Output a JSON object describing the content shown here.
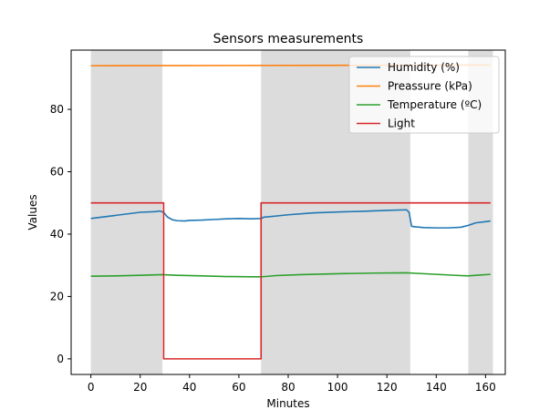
{
  "chart_data": {
    "type": "line",
    "title": "Sensors measurements",
    "xlabel": "Minutes",
    "ylabel": "Values",
    "xlim": [
      -8,
      168
    ],
    "ylim": [
      -5,
      99
    ],
    "xticks": [
      0,
      20,
      40,
      60,
      80,
      100,
      120,
      140,
      160
    ],
    "yticks": [
      0,
      20,
      40,
      60,
      80
    ],
    "grid": false,
    "legend_position": "top-right",
    "shaded_regions": [
      {
        "x0": 0,
        "x1": 29,
        "color": "#dcdcdc"
      },
      {
        "x0": 69,
        "x1": 129.5,
        "color": "#dcdcdc"
      },
      {
        "x0": 153,
        "x1": 163,
        "color": "#dcdcdc"
      }
    ],
    "series": [
      {
        "name": "Humidity (%)",
        "color": "#1f77b4",
        "points": [
          [
            0,
            45
          ],
          [
            10,
            46
          ],
          [
            20,
            47
          ],
          [
            26,
            47.2
          ],
          [
            28,
            47.4
          ],
          [
            29.5,
            47
          ],
          [
            31,
            45.5
          ],
          [
            33,
            44.6
          ],
          [
            35,
            44.3
          ],
          [
            38,
            44.2
          ],
          [
            40,
            44.4
          ],
          [
            45,
            44.5
          ],
          [
            50,
            44.7
          ],
          [
            55,
            44.9
          ],
          [
            60,
            45
          ],
          [
            65,
            44.9
          ],
          [
            69,
            45
          ],
          [
            70,
            45.4
          ],
          [
            75,
            45.8
          ],
          [
            80,
            46.2
          ],
          [
            90,
            46.8
          ],
          [
            100,
            47.1
          ],
          [
            110,
            47.3
          ],
          [
            120,
            47.6
          ],
          [
            128,
            47.8
          ],
          [
            129,
            47
          ],
          [
            130,
            42.5
          ],
          [
            132,
            42.3
          ],
          [
            135,
            42.1
          ],
          [
            140,
            42.0
          ],
          [
            145,
            42.0
          ],
          [
            150,
            42.2
          ],
          [
            153,
            42.8
          ],
          [
            156,
            43.6
          ],
          [
            160,
            44.0
          ],
          [
            162,
            44.2
          ]
        ]
      },
      {
        "name": "Preassure (kPa)",
        "color": "#ff7f0e",
        "points": [
          [
            0,
            94
          ],
          [
            162,
            94.2
          ]
        ]
      },
      {
        "name": "Temperature (ºC)",
        "color": "#2ca02c",
        "points": [
          [
            0,
            26.5
          ],
          [
            10,
            26.6
          ],
          [
            20,
            26.8
          ],
          [
            29,
            27.0
          ],
          [
            35,
            26.8
          ],
          [
            45,
            26.6
          ],
          [
            55,
            26.4
          ],
          [
            65,
            26.3
          ],
          [
            69,
            26.3
          ],
          [
            75,
            26.7
          ],
          [
            85,
            27.0
          ],
          [
            100,
            27.3
          ],
          [
            115,
            27.5
          ],
          [
            128,
            27.6
          ],
          [
            130,
            27.5
          ],
          [
            140,
            27.1
          ],
          [
            150,
            26.7
          ],
          [
            153,
            26.6
          ],
          [
            158,
            26.9
          ],
          [
            162,
            27.1
          ]
        ]
      },
      {
        "name": "Light",
        "color": "#d62728",
        "points": [
          [
            0,
            50
          ],
          [
            29.5,
            50
          ],
          [
            29.5,
            0
          ],
          [
            69,
            0
          ],
          [
            69,
            50
          ],
          [
            162,
            50
          ]
        ]
      }
    ]
  }
}
